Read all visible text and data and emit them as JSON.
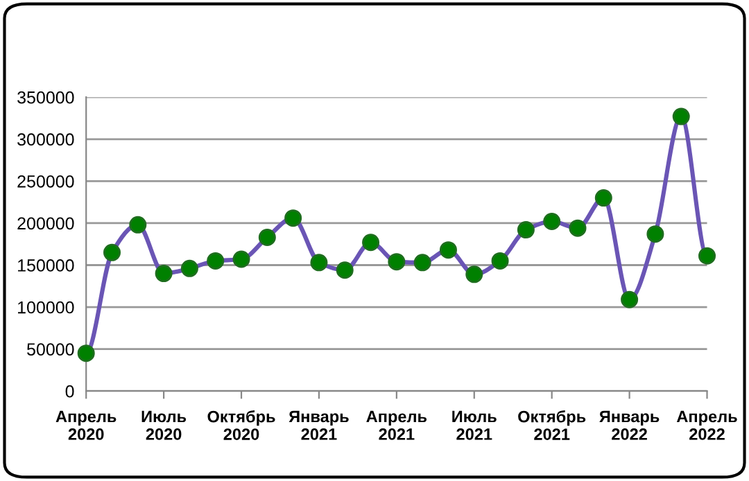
{
  "chart_data": {
    "type": "line",
    "categories": [
      "Апрель\n2020",
      null,
      null,
      "Июль\n2020",
      null,
      null,
      "Октябрь\n2020",
      null,
      null,
      "Январь\n2021",
      null,
      null,
      "Апрель\n2021",
      null,
      null,
      "Июль\n2021",
      null,
      null,
      "Октябрь\n2021",
      null,
      null,
      "Январь\n2022",
      null,
      null,
      "Апрель\n2022"
    ],
    "series": [
      {
        "color": "#6a55b5",
        "values": [
          45000,
          165000,
          198000,
          140000,
          146000,
          155000,
          157000,
          183000,
          206000,
          153000,
          144000,
          177000,
          154000,
          153000,
          168000,
          139000,
          155000,
          192000,
          202000,
          194000,
          230000,
          109000,
          187000,
          327000,
          161000
        ]
      }
    ],
    "ylim": [
      0,
      350000
    ],
    "yticks": [
      0,
      50000,
      100000,
      150000,
      200000,
      250000,
      300000,
      350000
    ],
    "grid": "y",
    "marker": "circle",
    "line_style": "solid",
    "legend": false
  }
}
